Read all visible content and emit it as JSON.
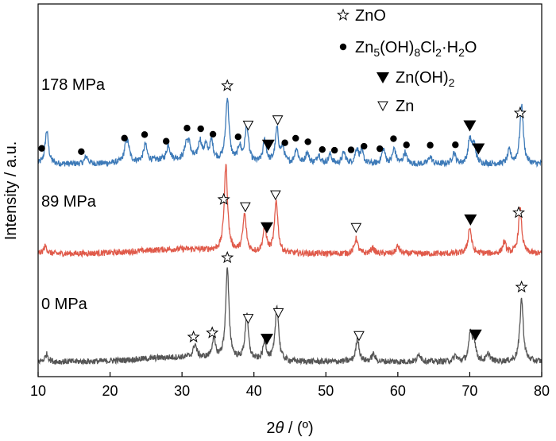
{
  "chart_data": {
    "type": "line",
    "title": "",
    "xlabel": "2θ / (º)",
    "ylabel": "Intensity / a.u.",
    "xlim": [
      10,
      80
    ],
    "xticks": [
      10,
      20,
      30,
      40,
      50,
      60,
      70,
      80
    ],
    "grid": false,
    "y_ticks_shown": false,
    "legend": {
      "placement": "top-right",
      "entries": [
        {
          "marker": "star-open",
          "label": "ZnO"
        },
        {
          "marker": "circle-filled",
          "label": "Zn5(OH)8Cl2·H2O"
        },
        {
          "marker": "triangle-down-filled",
          "label": "Zn(OH)2"
        },
        {
          "marker": "triangle-down-open",
          "label": "Zn"
        }
      ]
    },
    "series": [
      {
        "name": "178 MPa",
        "color": "#3d7ab8",
        "baseline": 0.57,
        "peaks": [
          [
            11.2,
            0.09
          ],
          [
            16.7,
            0.02
          ],
          [
            22.2,
            0.04
          ],
          [
            22.5,
            0.035
          ],
          [
            24.9,
            0.045
          ],
          [
            28.1,
            0.04
          ],
          [
            30.6,
            0.04
          ],
          [
            31.0,
            0.035
          ],
          [
            32.5,
            0.05
          ],
          [
            33.3,
            0.035
          ],
          [
            34.1,
            0.05
          ],
          [
            36.3,
            0.17
          ],
          [
            38.0,
            0.04
          ],
          [
            39.0,
            0.1
          ],
          [
            41.5,
            0.06
          ],
          [
            43.2,
            0.09
          ],
          [
            44.0,
            0.04
          ],
          [
            45.9,
            0.04
          ],
          [
            47.4,
            0.03
          ],
          [
            49.0,
            0.025
          ],
          [
            50.6,
            0.025
          ],
          [
            52.5,
            0.03
          ],
          [
            54.3,
            0.04
          ],
          [
            55.0,
            0.03
          ],
          [
            58.0,
            0.04
          ],
          [
            59.5,
            0.04
          ],
          [
            61.0,
            0.03
          ],
          [
            64.5,
            0.02
          ],
          [
            67.8,
            0.03
          ],
          [
            70.0,
            0.065
          ],
          [
            70.6,
            0.05
          ],
          [
            75.5,
            0.035
          ],
          [
            77.2,
            0.16
          ]
        ],
        "markers": [
          {
            "type": "circle-filled",
            "x": 10.5
          },
          {
            "type": "circle-filled",
            "x": 16.0
          },
          {
            "type": "circle-filled",
            "x": 22.0
          },
          {
            "type": "circle-filled",
            "x": 24.8
          },
          {
            "type": "circle-filled",
            "x": 27.8
          },
          {
            "type": "circle-filled",
            "x": 30.7
          },
          {
            "type": "circle-filled",
            "x": 32.6
          },
          {
            "type": "circle-filled",
            "x": 34.3
          },
          {
            "type": "star-open",
            "x": 36.3
          },
          {
            "type": "circle-filled",
            "x": 37.8
          },
          {
            "type": "triangle-down-open",
            "x": 39.2
          },
          {
            "type": "triangle-down-filled",
            "x": 42.0
          },
          {
            "type": "triangle-down-open",
            "x": 43.3
          },
          {
            "type": "circle-filled",
            "x": 44.3
          },
          {
            "type": "circle-filled",
            "x": 45.8
          },
          {
            "type": "circle-filled",
            "x": 47.5
          },
          {
            "type": "circle-filled",
            "x": 49.5
          },
          {
            "type": "circle-filled",
            "x": 51.2
          },
          {
            "type": "circle-filled",
            "x": 53.5
          },
          {
            "type": "circle-filled",
            "x": 55.3
          },
          {
            "type": "circle-filled",
            "x": 57.5
          },
          {
            "type": "circle-filled",
            "x": 59.4
          },
          {
            "type": "circle-filled",
            "x": 61.2
          },
          {
            "type": "circle-filled",
            "x": 64.5
          },
          {
            "type": "circle-filled",
            "x": 68.0
          },
          {
            "type": "triangle-down-filled",
            "x": 70.0
          },
          {
            "type": "triangle-down-filled",
            "x": 71.2
          },
          {
            "type": "star-open",
            "x": 77.0
          }
        ]
      },
      {
        "name": "89 MPa",
        "color": "#e05a4a",
        "baseline": 0.33,
        "peaks": [
          [
            11.0,
            0.02
          ],
          [
            36.1,
            0.23
          ],
          [
            38.7,
            0.1
          ],
          [
            41.5,
            0.07
          ],
          [
            43.1,
            0.14
          ],
          [
            54.2,
            0.04
          ],
          [
            56.5,
            0.015
          ],
          [
            60.0,
            0.02
          ],
          [
            70.0,
            0.07
          ],
          [
            74.8,
            0.03
          ],
          [
            77.0,
            0.12
          ]
        ],
        "markers": [
          {
            "type": "star-open",
            "x": 35.8
          },
          {
            "type": "triangle-down-open",
            "x": 38.8
          },
          {
            "type": "triangle-down-filled",
            "x": 41.8
          },
          {
            "type": "triangle-down-open",
            "x": 43.0
          },
          {
            "type": "triangle-down-open",
            "x": 54.2
          },
          {
            "type": "triangle-down-filled",
            "x": 70.1
          },
          {
            "type": "star-open",
            "x": 76.8
          }
        ]
      },
      {
        "name": "0 MPa",
        "color": "#555555",
        "baseline": 0.04,
        "peaks": [
          [
            11.2,
            0.02
          ],
          [
            31.8,
            0.035
          ],
          [
            34.4,
            0.05
          ],
          [
            36.3,
            0.24
          ],
          [
            39.0,
            0.12
          ],
          [
            41.5,
            0.05
          ],
          [
            43.2,
            0.15
          ],
          [
            54.4,
            0.06
          ],
          [
            56.6,
            0.02
          ],
          [
            63.0,
            0.02
          ],
          [
            68.0,
            0.015
          ],
          [
            70.1,
            0.07
          ],
          [
            70.6,
            0.05
          ],
          [
            72.6,
            0.02
          ],
          [
            77.2,
            0.17
          ]
        ],
        "markers": [
          {
            "type": "star-open",
            "x": 31.6
          },
          {
            "type": "star-open",
            "x": 34.2
          },
          {
            "type": "star-open",
            "x": 36.3
          },
          {
            "type": "triangle-down-open",
            "x": 39.2
          },
          {
            "type": "triangle-down-filled",
            "x": 41.8
          },
          {
            "type": "triangle-down-open",
            "x": 43.4
          },
          {
            "type": "triangle-down-open",
            "x": 54.6
          },
          {
            "type": "triangle-down-filled",
            "x": 70.8
          },
          {
            "type": "star-open",
            "x": 77.2
          }
        ]
      }
    ]
  }
}
